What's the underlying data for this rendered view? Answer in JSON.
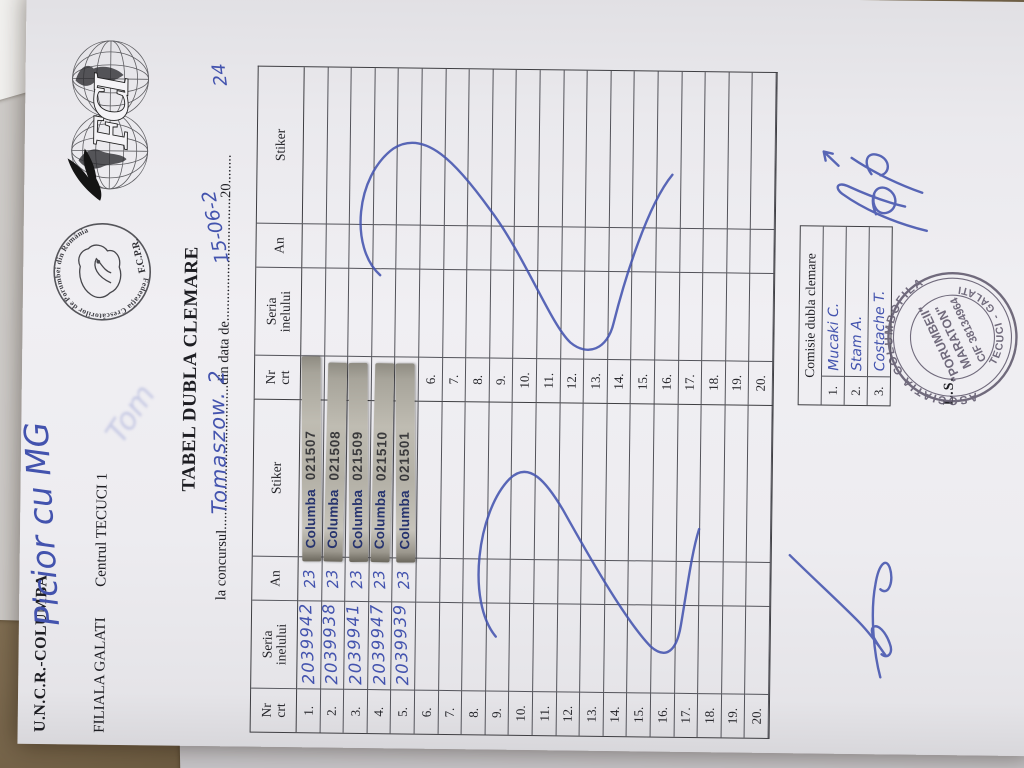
{
  "org": {
    "name": "U.N.C.R.-COLUMBA",
    "branch": "FILIALA GALATI",
    "center": "Centrul TECUCI 1",
    "handwritten_owner": "Picior cu MG",
    "fci_monogram": "FCI",
    "fcpr_ring": "Federaţia Crescătorilor de Porumbei din România",
    "fcpr_abbr": "F.C.P.R."
  },
  "title": "TABEL DUBLA CLEMARE",
  "subtitle": {
    "prefix": "la concursul",
    "dots1": "........................................",
    "contest_handwritten": "Tomaszow. 2",
    "mid": "din data de",
    "dots2": "..................................",
    "date_handwritten": "15-06-2",
    "year_printed": "20",
    "dots3": "........",
    "year_handwritten": "24"
  },
  "faint_bleed": "Tom",
  "table": {
    "headers": {
      "nr": [
        "Nr",
        "crt"
      ],
      "seria": [
        "Seria",
        "inelului"
      ],
      "an": "An",
      "stiker": "Stiker"
    },
    "sticker_brand": "Columba",
    "left_rows": [
      {
        "nr": "1.",
        "seria": "2039942",
        "an": "23",
        "sticker": "021507"
      },
      {
        "nr": "2.",
        "seria": "2039938",
        "an": "23",
        "sticker": "021508"
      },
      {
        "nr": "3.",
        "seria": "2039941",
        "an": "23",
        "sticker": "021509"
      },
      {
        "nr": "4.",
        "seria": "2039947",
        "an": "23",
        "sticker": "021510"
      },
      {
        "nr": "5.",
        "seria": "2039939",
        "an": "23",
        "sticker": "021501"
      },
      {
        "nr": "6."
      },
      {
        "nr": "7."
      },
      {
        "nr": "8."
      },
      {
        "nr": "9."
      },
      {
        "nr": "10."
      },
      {
        "nr": "11."
      },
      {
        "nr": "12."
      },
      {
        "nr": "13."
      },
      {
        "nr": "14."
      },
      {
        "nr": "15."
      },
      {
        "nr": "16."
      },
      {
        "nr": "17."
      },
      {
        "nr": "18."
      },
      {
        "nr": "19."
      },
      {
        "nr": "20."
      }
    ],
    "right_rows": [
      "1.",
      "2.",
      "3.",
      "4.",
      "5.",
      "6.",
      "7.",
      "8.",
      "9.",
      "10.",
      "11.",
      "12.",
      "13.",
      "14.",
      "15.",
      "16.",
      "17.",
      "18.",
      "19.",
      "20."
    ]
  },
  "comisie": {
    "title": "Comisie dubla clemare",
    "members": [
      {
        "nr": "1.",
        "name": "Mucaki C."
      },
      {
        "nr": "2.",
        "name": "Stam A."
      },
      {
        "nr": "3.",
        "name": "Costache T."
      }
    ]
  },
  "stamp": {
    "top_arc": "ASOCIATIA COLUMBOFILA",
    "bottom_arc": "TECUCI - GALATI",
    "center_line1": "\"PORUMBEII\"",
    "center_line2": "MARATON\"",
    "center_line3": "CIF 38134964"
  },
  "ls": "L.S.",
  "colors": {
    "pen_blue": "#4353ae",
    "stamp_ink": "#5b5468",
    "sticker_silver": "#b8b5ab",
    "sticker_brand_blue": "#26336e",
    "paper": "#ebeaee",
    "desk": "#7d6b50"
  }
}
